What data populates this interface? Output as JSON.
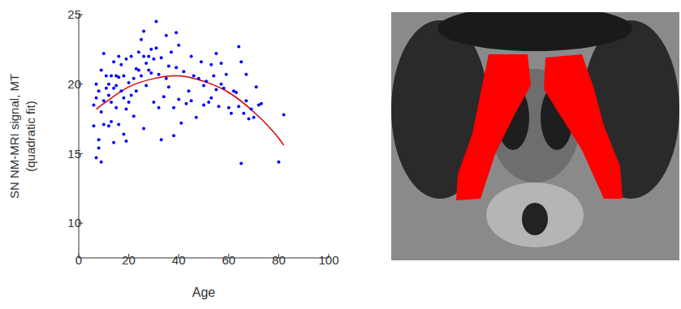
{
  "chart_data": {
    "type": "scatter",
    "xlabel": "Age",
    "ylabel": [
      "SN NM-MRI signal, MT",
      "(quadratic fit)"
    ],
    "xlim": [
      0,
      100
    ],
    "xticks": [
      0,
      20,
      40,
      60,
      80,
      100
    ],
    "ylim": [
      7.5,
      25
    ],
    "yticks": [
      10,
      15,
      20,
      25
    ],
    "grid": false,
    "series": [
      {
        "type": "scatter",
        "color": "#0000ff",
        "marker": "dot",
        "x": [
          6,
          6,
          7,
          7,
          7,
          8,
          8,
          8,
          9,
          9,
          9,
          10,
          10,
          10,
          11,
          11,
          12,
          12,
          12,
          13,
          13,
          13,
          14,
          14,
          14,
          15,
          15,
          15,
          16,
          16,
          16,
          17,
          17,
          18,
          18,
          18,
          19,
          19,
          19,
          20,
          20,
          21,
          21,
          22,
          22,
          23,
          23,
          24,
          24,
          25,
          25,
          26,
          26,
          26,
          27,
          27,
          28,
          28,
          29,
          29,
          30,
          30,
          31,
          31,
          32,
          32,
          33,
          33,
          34,
          35,
          35,
          36,
          36,
          37,
          38,
          38,
          39,
          39,
          40,
          40,
          41,
          42,
          43,
          44,
          45,
          45,
          46,
          47,
          48,
          49,
          50,
          50,
          51,
          52,
          53,
          53,
          54,
          55,
          55,
          56,
          57,
          57,
          58,
          59,
          60,
          61,
          62,
          63,
          64,
          64,
          65,
          65,
          66,
          67,
          67,
          68,
          69,
          70,
          71,
          72,
          73,
          80,
          82
        ],
        "values": [
          17.0,
          18.5,
          19.0,
          14.7,
          20.0,
          16.0,
          15.4,
          19.5,
          14.4,
          18.0,
          21.0,
          22.2,
          17.1,
          18.8,
          19.7,
          20.6,
          17.0,
          19.2,
          20.0,
          17.3,
          20.6,
          18.7,
          21.6,
          19.7,
          15.8,
          20.6,
          18.3,
          19.9,
          22.0,
          17.1,
          20.5,
          19.5,
          21.4,
          16.4,
          20.6,
          19.0,
          15.9,
          18.2,
          21.8,
          20.1,
          18.7,
          19.2,
          22.0,
          20.4,
          17.7,
          21.1,
          19.5,
          22.3,
          21.0,
          23.2,
          20.6,
          22.0,
          16.8,
          23.8,
          21.5,
          19.9,
          22.0,
          21.0,
          20.8,
          22.5,
          18.7,
          21.8,
          24.5,
          22.6,
          20.7,
          18.3,
          21.9,
          16.0,
          19.1,
          23.5,
          20.4,
          21.3,
          19.8,
          22.3,
          18.3,
          16.3,
          23.7,
          21.2,
          18.9,
          22.8,
          17.2,
          20.9,
          18.6,
          19.5,
          22.0,
          18.8,
          20.6,
          17.6,
          20.4,
          21.6,
          18.5,
          19.9,
          20.2,
          18.7,
          21.4,
          19.0,
          20.6,
          22.2,
          19.6,
          18.4,
          20.0,
          21.5,
          19.7,
          20.7,
          18.3,
          17.9,
          19.5,
          19.4,
          22.7,
          18.4,
          14.3,
          21.6,
          17.9,
          20.7,
          18.8,
          17.5,
          18.2,
          17.6,
          19.8,
          18.5,
          18.6,
          14.4,
          17.8
        ]
      },
      {
        "type": "line",
        "color": "#d40000",
        "line_style": "solid",
        "x": [
          7,
          10,
          20,
          30,
          38,
          40,
          50,
          60,
          70,
          80,
          82
        ],
        "values": [
          18.2,
          18.6,
          19.8,
          20.4,
          20.6,
          20.6,
          20.2,
          19.4,
          18.0,
          16.1,
          15.6
        ]
      }
    ]
  }
}
